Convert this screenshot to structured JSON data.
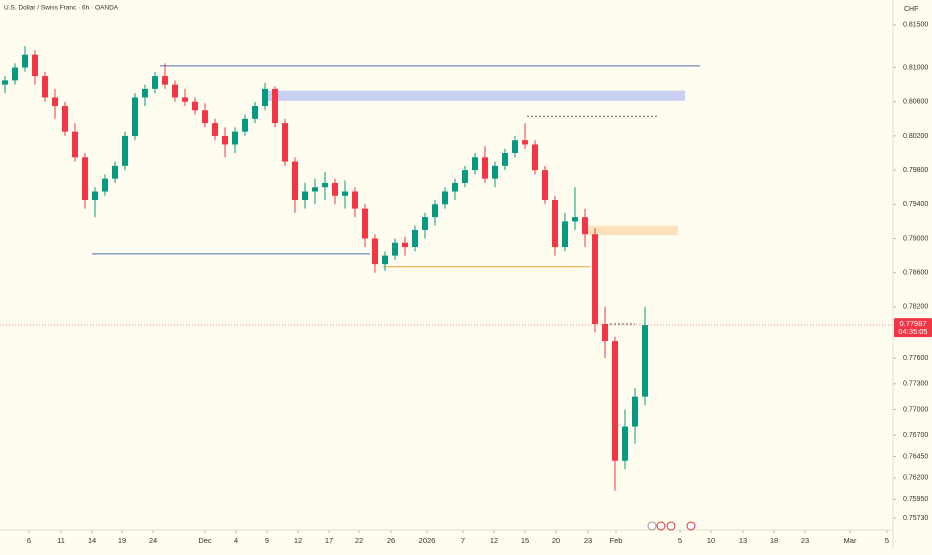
{
  "chart_data": {
    "type": "candlestick",
    "title": "U.S. Dollar / Swiss Franc · 6h · OANDA",
    "currency": "CHF",
    "countdown": "04:35:05",
    "up_color": "#089981",
    "down_color": "#f23645",
    "x": [
      0.5,
      1.5,
      2.5,
      3.5,
      4.5,
      5.5,
      6.5,
      7.5,
      8.5,
      9.5,
      10.5,
      11.5,
      12.5,
      13.5,
      14.5,
      15.5,
      16.5,
      17.5,
      18.5,
      19.5,
      20.5,
      21.5,
      22.5,
      23.5,
      24.5,
      25.5,
      26.5,
      27.5,
      28.5,
      29.5,
      30.5,
      31.5,
      32.5,
      33.5,
      34.5,
      35.5,
      36.5,
      37.5,
      38.5,
      39.5,
      40.5,
      41.5,
      42.5,
      43.5,
      44.5,
      45.5,
      46.5,
      47.5,
      48.5,
      49.5,
      50.5,
      51.5,
      52.5,
      53.5,
      54.5,
      55.5,
      56.5,
      57.5,
      58.5,
      59.5,
      60.5,
      61.5,
      62.5,
      63.5,
      64.5
    ],
    "open": [
      0.808,
      0.8085,
      0.81,
      0.8115,
      0.809,
      0.8065,
      0.8055,
      0.8025,
      0.7995,
      0.7945,
      0.7955,
      0.797,
      0.7985,
      0.802,
      0.8065,
      0.8075,
      0.809,
      0.808,
      0.8065,
      0.806,
      0.805,
      0.8035,
      0.802,
      0.801,
      0.8025,
      0.804,
      0.8055,
      0.8075,
      0.8035,
      0.799,
      0.7945,
      0.7955,
      0.796,
      0.7965,
      0.795,
      0.7955,
      0.7935,
      0.79,
      0.787,
      0.788,
      0.7895,
      0.789,
      0.791,
      0.7925,
      0.794,
      0.7955,
      0.7965,
      0.798,
      0.7995,
      0.797,
      0.7985,
      0.8,
      0.8015,
      0.801,
      0.798,
      0.7945,
      0.789,
      0.792,
      0.7925,
      0.7905,
      0.78,
      0.778,
      0.764,
      0.768,
      0.7715
    ],
    "high": [
      0.809,
      0.8105,
      0.8125,
      0.812,
      0.8095,
      0.8075,
      0.806,
      0.8035,
      0.8,
      0.796,
      0.7975,
      0.799,
      0.8025,
      0.807,
      0.808,
      0.8095,
      0.8105,
      0.8085,
      0.8075,
      0.8065,
      0.8058,
      0.804,
      0.803,
      0.803,
      0.8045,
      0.806,
      0.8082,
      0.8078,
      0.804,
      0.7995,
      0.7965,
      0.797,
      0.7978,
      0.797,
      0.7968,
      0.796,
      0.794,
      0.7905,
      0.7885,
      0.79,
      0.7902,
      0.7915,
      0.793,
      0.7945,
      0.796,
      0.797,
      0.7985,
      0.8,
      0.8008,
      0.799,
      0.8005,
      0.802,
      0.8035,
      0.8015,
      0.7985,
      0.795,
      0.793,
      0.796,
      0.7935,
      0.7912,
      0.782,
      0.7785,
      0.77,
      0.7725,
      0.782
    ],
    "low": [
      0.807,
      0.808,
      0.8095,
      0.808,
      0.806,
      0.804,
      0.802,
      0.799,
      0.7935,
      0.7925,
      0.795,
      0.7965,
      0.798,
      0.8015,
      0.8055,
      0.807,
      0.8075,
      0.806,
      0.8055,
      0.8045,
      0.803,
      0.8015,
      0.7995,
      0.8,
      0.802,
      0.8035,
      0.805,
      0.803,
      0.7985,
      0.793,
      0.7935,
      0.794,
      0.7945,
      0.794,
      0.7935,
      0.7925,
      0.789,
      0.786,
      0.7862,
      0.7875,
      0.788,
      0.7885,
      0.79,
      0.7915,
      0.7935,
      0.7945,
      0.796,
      0.7975,
      0.7965,
      0.796,
      0.798,
      0.7995,
      0.8005,
      0.7975,
      0.794,
      0.788,
      0.7885,
      0.791,
      0.789,
      0.779,
      0.776,
      0.7605,
      0.763,
      0.766,
      0.7705
    ],
    "close": [
      0.8085,
      0.81,
      0.8115,
      0.809,
      0.8065,
      0.8055,
      0.8025,
      0.7995,
      0.7945,
      0.7955,
      0.797,
      0.7985,
      0.802,
      0.8065,
      0.8075,
      0.809,
      0.808,
      0.8065,
      0.806,
      0.805,
      0.8035,
      0.802,
      0.801,
      0.8025,
      0.804,
      0.8055,
      0.8075,
      0.8035,
      0.799,
      0.7945,
      0.7955,
      0.796,
      0.7965,
      0.795,
      0.7955,
      0.7935,
      0.79,
      0.787,
      0.788,
      0.7895,
      0.789,
      0.791,
      0.7925,
      0.794,
      0.7955,
      0.7965,
      0.798,
      0.7995,
      0.797,
      0.7985,
      0.8,
      0.8015,
      0.801,
      0.798,
      0.7945,
      0.789,
      0.792,
      0.7925,
      0.7905,
      0.78,
      0.778,
      0.764,
      0.768,
      0.7715,
      0.77987
    ],
    "xlim": [
      0,
      89.3
    ],
    "ylim": [
      0.7559,
      0.8179
    ],
    "xticks": [
      {
        "value": 2.9,
        "label": "6"
      },
      {
        "value": 6.1,
        "label": "11"
      },
      {
        "value": 9.2,
        "label": "14"
      },
      {
        "value": 12.2,
        "label": "19"
      },
      {
        "value": 15.3,
        "label": "24"
      },
      {
        "value": 20.5,
        "label": "Dec"
      },
      {
        "value": 23.6,
        "label": "4"
      },
      {
        "value": 26.7,
        "label": "9"
      },
      {
        "value": 29.8,
        "label": "12"
      },
      {
        "value": 32.9,
        "label": "17"
      },
      {
        "value": 35.9,
        "label": "22"
      },
      {
        "value": 39.1,
        "label": "26"
      },
      {
        "value": 42.7,
        "label": "2026"
      },
      {
        "value": 46.3,
        "label": "7"
      },
      {
        "value": 49.4,
        "label": "12"
      },
      {
        "value": 52.5,
        "label": "15"
      },
      {
        "value": 55.6,
        "label": "20"
      },
      {
        "value": 58.8,
        "label": "23"
      },
      {
        "value": 61.6,
        "label": "Feb"
      },
      {
        "value": 68,
        "label": "5"
      },
      {
        "value": 71.1,
        "label": "10"
      },
      {
        "value": 74.3,
        "label": "13"
      },
      {
        "value": 77.4,
        "label": "18"
      },
      {
        "value": 80.5,
        "label": "23"
      },
      {
        "value": 85,
        "label": "Mar"
      },
      {
        "value": 88.7,
        "label": "5"
      }
    ],
    "yticks": [
      {
        "value": 0.815,
        "label": "0.81500"
      },
      {
        "value": 0.81,
        "label": "0.81000"
      },
      {
        "value": 0.806,
        "label": "0.80600"
      },
      {
        "value": 0.802,
        "label": "0.80200"
      },
      {
        "value": 0.798,
        "label": "0.79800"
      },
      {
        "value": 0.794,
        "label": "0.79400"
      },
      {
        "value": 0.79,
        "label": "0.79000"
      },
      {
        "value": 0.786,
        "label": "0.78600"
      },
      {
        "value": 0.782,
        "label": "0.78200"
      },
      {
        "value": 0.776,
        "label": "0.77600"
      },
      {
        "value": 0.773,
        "label": "0.77300"
      },
      {
        "value": 0.77,
        "label": "0.77000"
      },
      {
        "value": 0.767,
        "label": "0.76700"
      },
      {
        "value": 0.7645,
        "label": "0.76450"
      },
      {
        "value": 0.762,
        "label": "0.76200"
      },
      {
        "value": 0.7595,
        "label": "0.75950"
      },
      {
        "value": 0.7573,
        "label": "0.75730"
      }
    ],
    "levels": [
      {
        "kind": "line",
        "y": [
          0.8102
        ],
        "x": [
          16,
          70
        ],
        "color": "#4a6fb5",
        "dashed": false
      },
      {
        "kind": "zone",
        "y": [
          0.8073,
          0.8061
        ],
        "x": [
          26.8,
          68.5
        ],
        "color": "#c9d1f2",
        "dashed": false
      },
      {
        "kind": "line",
        "y": [
          0.7882
        ],
        "x": [
          9.2,
          37
        ],
        "color": "#4a6fb5",
        "dashed": false
      },
      {
        "kind": "line",
        "y": [
          0.7867
        ],
        "x": [
          38.3,
          59
        ],
        "color": "#f0a030",
        "dashed": false
      },
      {
        "kind": "zone",
        "y": [
          0.7915,
          0.7904
        ],
        "x": [
          58.8,
          67.8
        ],
        "color": "#fde2bd",
        "dashed": false
      },
      {
        "kind": "line",
        "y": [
          0.8043
        ],
        "x": [
          52.7,
          65.7
        ],
        "color": "#555555",
        "dashed": true
      },
      {
        "kind": "line",
        "y": [
          0.78
        ],
        "x": [
          61,
          63.5
        ],
        "color": "#555555",
        "dashed": true
      }
    ]
  }
}
